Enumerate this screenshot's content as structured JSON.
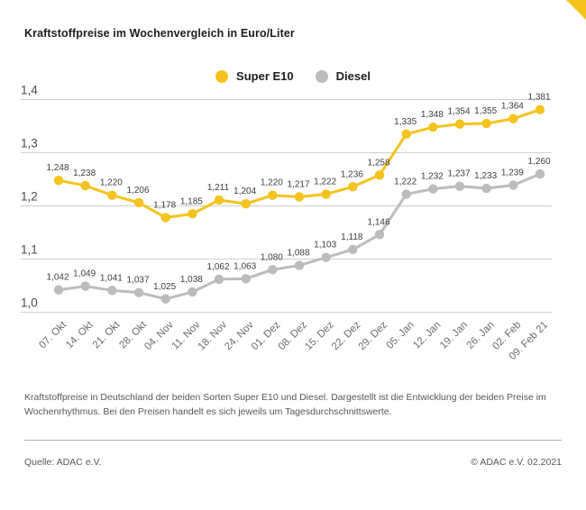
{
  "title": "Kraftstoffpreise im Wochenvergleich in Euro/Liter",
  "corner": {
    "color": "#F5C31E"
  },
  "colors": {
    "super_e10": "#F5C31E",
    "diesel": "#BCBCBC",
    "grid": "#CFCFCF",
    "title_text": "#1D1D1B",
    "muted_text": "#575756"
  },
  "legend": [
    {
      "label": "Super E10",
      "color": "#F5C31E"
    },
    {
      "label": "Diesel",
      "color": "#BCBCBC"
    }
  ],
  "chart_data": {
    "type": "line",
    "title": "Kraftstoffpreise im Wochenvergleich in Euro/Liter",
    "x": [
      "07. Okt",
      "14. Okt",
      "21. Okt",
      "28. Okt",
      "04. Nov",
      "11. Nov",
      "18. Nov",
      "24. Nov",
      "01. Dez",
      "08. Dez",
      "15. Dez",
      "22. Dez",
      "29. Dez",
      "05. Jan",
      "12. Jan",
      "19. Jan",
      "26. Jan",
      "02. Feb",
      "09. Feb 21"
    ],
    "series": [
      {
        "name": "Super E10",
        "color": "#F5C31E",
        "values": [
          1.248,
          1.238,
          1.22,
          1.206,
          1.178,
          1.185,
          1.211,
          1.204,
          1.22,
          1.217,
          1.222,
          1.236,
          1.258,
          1.335,
          1.348,
          1.354,
          1.355,
          1.364,
          1.381
        ]
      },
      {
        "name": "Diesel",
        "color": "#BCBCBC",
        "values": [
          1.042,
          1.049,
          1.041,
          1.037,
          1.025,
          1.038,
          1.062,
          1.063,
          1.08,
          1.088,
          1.103,
          1.118,
          1.146,
          1.222,
          1.232,
          1.237,
          1.233,
          1.239,
          1.26
        ]
      }
    ],
    "xlabel": "",
    "ylabel": "",
    "ylim": [
      1.0,
      1.4
    ],
    "yticks": [
      "1,0",
      "1,1",
      "1,2",
      "1,3",
      "1,4"
    ],
    "ytick_step": 0.1,
    "grid": true,
    "legend_position": "top-center",
    "value_labels": true,
    "decimal_separator": ","
  },
  "footer": {
    "description": "Kraftstoffpreise in Deutschland der beiden Sorten Super E10 und Diesel. Dargestellt ist die Entwicklung der beiden Preise im Wochenrhythmus. Bei den Preisen handelt es sich jeweils um Tagesdurchschnittswerte.",
    "source": "Quelle: ADAC e.V.",
    "copyright": "© ADAC e.V. 02.2021"
  }
}
